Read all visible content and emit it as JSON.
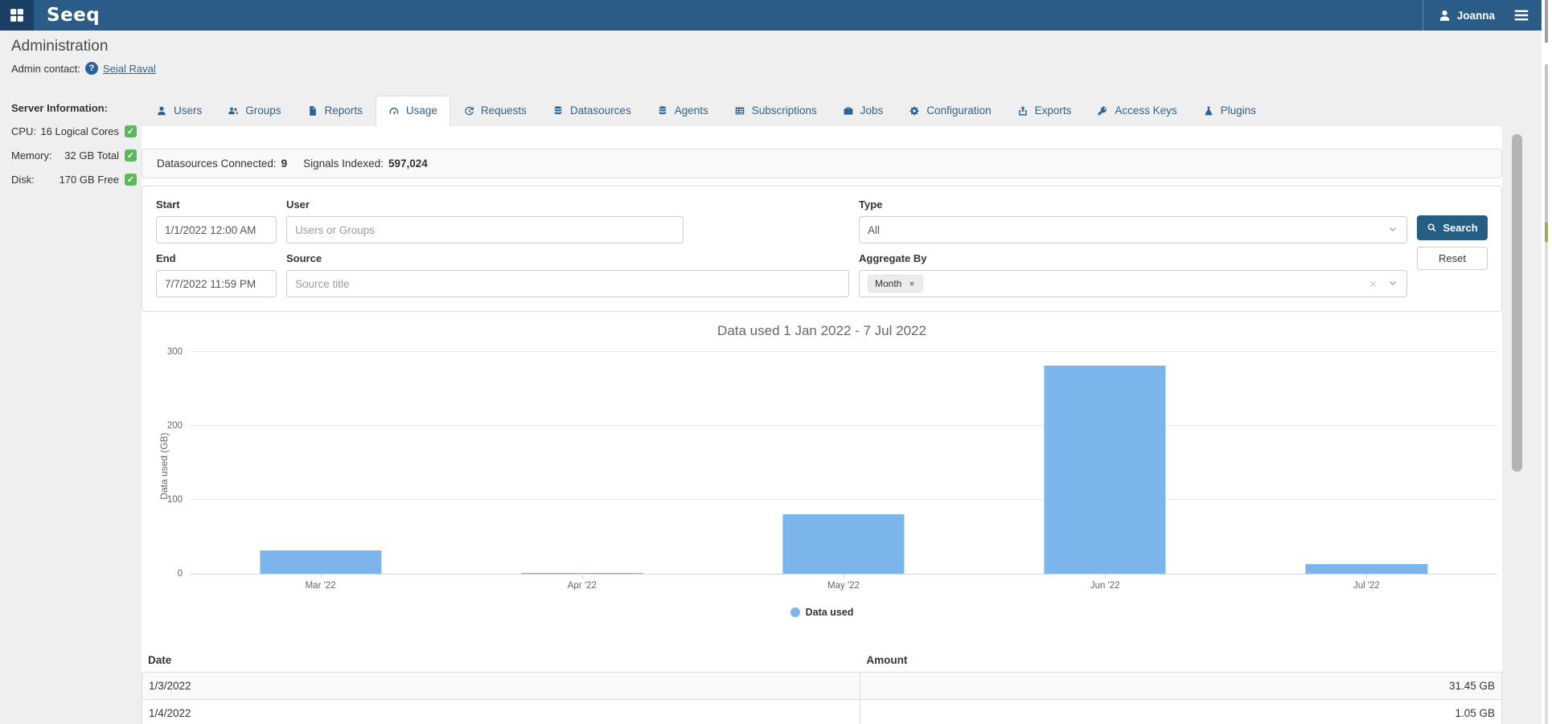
{
  "navbar": {
    "logo": "Seeq",
    "user": "Joanna",
    "icons": [
      "grid-icon",
      "user-icon",
      "hamburger-icon"
    ]
  },
  "page": {
    "title": "Administration",
    "admin_contact_label": "Admin contact:",
    "admin_contact_name": "Sejal Raval"
  },
  "server_info": {
    "heading": "Server Information:",
    "rows": [
      {
        "label": "CPU:",
        "value": "16 Logical Cores",
        "status_icon": "check-icon"
      },
      {
        "label": "Memory:",
        "value": "32 GB Total",
        "status_icon": "check-icon"
      },
      {
        "label": "Disk:",
        "value": "170 GB Free",
        "status_icon": "check-icon"
      }
    ]
  },
  "tabs": {
    "active": "Usage",
    "items": [
      {
        "label": "Users",
        "icon": "user-icon"
      },
      {
        "label": "Groups",
        "icon": "users-icon"
      },
      {
        "label": "Reports",
        "icon": "file-icon"
      },
      {
        "label": "Usage",
        "icon": "tachometer-icon"
      },
      {
        "label": "Requests",
        "icon": "history-icon"
      },
      {
        "label": "Datasources",
        "icon": "database-icon"
      },
      {
        "label": "Agents",
        "icon": "database-icon"
      },
      {
        "label": "Subscriptions",
        "icon": "list-alt-icon"
      },
      {
        "label": "Jobs",
        "icon": "briefcase-icon"
      },
      {
        "label": "Configuration",
        "icon": "cogs-icon"
      },
      {
        "label": "Exports",
        "icon": "export-icon"
      },
      {
        "label": "Access Keys",
        "icon": "key-icon"
      },
      {
        "label": "Plugins",
        "icon": "flask-icon"
      }
    ]
  },
  "status_bar": {
    "datasources_label": "Datasources Connected:",
    "datasources_value": "9",
    "signals_label": "Signals Indexed:",
    "signals_value": "597,024"
  },
  "filters": {
    "start": {
      "label": "Start",
      "value": "1/1/2022 12:00 AM"
    },
    "end": {
      "label": "End",
      "value": "7/7/2022 11:59 PM"
    },
    "user": {
      "label": "User",
      "placeholder": "Users or Groups"
    },
    "source": {
      "label": "Source",
      "placeholder": "Source title"
    },
    "type": {
      "label": "Type",
      "value": "All"
    },
    "aggregate": {
      "label": "Aggregate By",
      "tag": "Month"
    },
    "search_label": "Search",
    "reset_label": "Reset"
  },
  "chart_data": {
    "type": "bar",
    "title": "Data used 1 Jan 2022 - 7 Jul 2022",
    "categories": [
      "Mar '22",
      "Apr '22",
      "May '22",
      "Jun '22",
      "Jul '22"
    ],
    "values": [
      31.45,
      1.05,
      80,
      282,
      13
    ],
    "xlabel": "",
    "ylabel": "Data used (GB)",
    "ylim": [
      0,
      300
    ],
    "yticks": [
      0,
      100,
      200,
      300
    ],
    "grid": true,
    "bar_color": "#7cb5ec",
    "legend_position": "bottom",
    "series_name": "Data used"
  },
  "legend": {
    "label": "Data used",
    "color": "#7cb5ec"
  },
  "table": {
    "columns": [
      "Date",
      "Amount"
    ],
    "rows": [
      {
        "date": "1/3/2022",
        "amount": "31.45 GB"
      },
      {
        "date": "1/4/2022",
        "amount": "1.05 GB"
      }
    ]
  },
  "colors": {
    "navbar": "#2b5c87",
    "navbar_dark": "#1b4066",
    "accent": "#2a6496",
    "bar": "#7cb5ec",
    "success": "#5cb85c",
    "button_primary": "#255d83"
  }
}
